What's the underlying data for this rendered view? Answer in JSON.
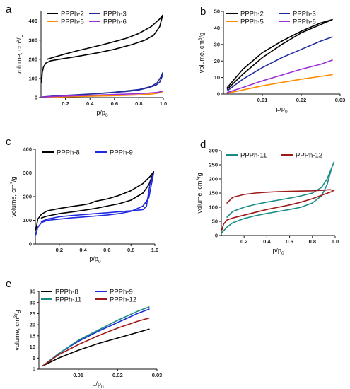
{
  "chart_data": [
    {
      "id": "a",
      "type": "line",
      "panel_label": "a",
      "xlabel_base": "p/p",
      "xlabel_sub": "0",
      "ylabel_base": "volume, cm",
      "ylabel_sup": "3",
      "ylabel_end": "/g",
      "xlim": [
        0,
        1.0
      ],
      "ylim": [
        0,
        450
      ],
      "xticks": [
        0.2,
        0.4,
        0.6,
        0.8,
        1.0
      ],
      "xtick_labels": [
        "0.2",
        "0.4",
        "0.6",
        "0.8",
        "1.0"
      ],
      "yticks": [
        0,
        100,
        200,
        300,
        400
      ],
      "ytick_labels": [
        "0",
        "100",
        "200",
        "300",
        "400"
      ],
      "legend_placement": "top-left",
      "series": [
        {
          "name": "PPPh-2",
          "color": "#000000",
          "x": [
            0.005,
            0.01,
            0.02,
            0.04,
            0.08,
            0.15,
            0.3,
            0.45,
            0.6,
            0.75,
            0.85,
            0.92,
            0.97,
            0.995,
            0.97,
            0.9,
            0.8,
            0.7,
            0.6,
            0.5,
            0.4,
            0.3,
            0.2,
            0.1,
            0.05
          ],
          "y": [
            80,
            130,
            160,
            180,
            192,
            200,
            215,
            232,
            252,
            278,
            300,
            325,
            370,
            430,
            410,
            370,
            335,
            310,
            292,
            275,
            260,
            245,
            228,
            210,
            200
          ]
        },
        {
          "name": "PPPh-3",
          "color": "#1f2e9c",
          "x": [
            0.005,
            0.1,
            0.3,
            0.5,
            0.7,
            0.8,
            0.88,
            0.94,
            0.97,
            0.99,
            0.995,
            0.98,
            0.95,
            0.9,
            0.8,
            0.6,
            0.4,
            0.2
          ],
          "y": [
            3,
            8,
            15,
            22,
            32,
            40,
            52,
            65,
            80,
            110,
            130,
            108,
            78,
            58,
            42,
            28,
            18,
            10
          ]
        },
        {
          "name": "PPPh-5",
          "color": "#ff8c00",
          "x": [
            0.005,
            0.2,
            0.4,
            0.6,
            0.8,
            0.9,
            0.95,
            0.99
          ],
          "y": [
            1,
            4,
            7,
            10,
            14,
            18,
            22,
            30
          ]
        },
        {
          "name": "PPPh-6",
          "color": "#9b2fd4",
          "x": [
            0.005,
            0.1,
            0.3,
            0.5,
            0.7,
            0.85,
            0.95,
            0.99
          ],
          "y": [
            2,
            6,
            10,
            14,
            18,
            22,
            27,
            33
          ]
        }
      ]
    },
    {
      "id": "b",
      "type": "line",
      "panel_label": "b",
      "xlabel_base": "p/p",
      "xlabel_sub": "0",
      "ylabel_base": "volume, cm",
      "ylabel_sup": "3",
      "ylabel_end": "/g",
      "xlim": [
        0,
        0.03
      ],
      "ylim": [
        0,
        50
      ],
      "xticks": [
        0.01,
        0.02,
        0.03
      ],
      "xtick_labels": [
        "0.01",
        "0.02",
        "0.03"
      ],
      "yticks": [
        0,
        10,
        20,
        30,
        40,
        50
      ],
      "ytick_labels": [
        "0",
        "10",
        "20",
        "30",
        "40",
        "50"
      ],
      "legend_placement": "top",
      "series": [
        {
          "name": "PPPh-2",
          "color": "#000000",
          "x": [
            0.001,
            0.005,
            0.01,
            0.015,
            0.02,
            0.025,
            0.028,
            0.025,
            0.02,
            0.015,
            0.01,
            0.005,
            0.001
          ],
          "y": [
            3,
            12,
            22,
            30,
            37,
            42,
            45,
            43,
            38,
            32,
            25,
            15,
            4
          ]
        },
        {
          "name": "PPPh-3",
          "color": "#1f2e9c",
          "x": [
            0.001,
            0.005,
            0.01,
            0.015,
            0.02,
            0.025,
            0.028
          ],
          "y": [
            2,
            9,
            16,
            22,
            27,
            32,
            34.5
          ]
        },
        {
          "name": "PPPh-5",
          "color": "#ff8c00",
          "x": [
            0.001,
            0.005,
            0.01,
            0.015,
            0.02,
            0.025,
            0.028
          ],
          "y": [
            0.5,
            2.5,
            5,
            7,
            9,
            10.7,
            11.7
          ]
        },
        {
          "name": "PPPh-6",
          "color": "#9b2fd4",
          "x": [
            0.001,
            0.005,
            0.01,
            0.015,
            0.02,
            0.025,
            0.028
          ],
          "y": [
            1,
            4,
            8,
            11.5,
            15,
            18,
            20.5
          ]
        }
      ]
    },
    {
      "id": "c",
      "type": "line",
      "panel_label": "c",
      "xlabel_base": "p/p",
      "xlabel_sub": "0",
      "ylabel_base": "volume, cm",
      "ylabel_sup": "3",
      "ylabel_end": "/g",
      "xlim": [
        0,
        1.0
      ],
      "ylim": [
        0,
        400
      ],
      "xticks": [
        0.2,
        0.4,
        0.6,
        0.8,
        1.0
      ],
      "xtick_labels": [
        "0.2",
        "0.4",
        "0.6",
        "0.8",
        "1.0"
      ],
      "yticks": [
        0,
        100,
        200,
        300,
        400
      ],
      "ytick_labels": [
        "0",
        "100",
        "200",
        "300",
        "400"
      ],
      "legend_placement": "top",
      "series": [
        {
          "name": "PPPh-8",
          "color": "#000000",
          "x": [
            0.005,
            0.02,
            0.05,
            0.1,
            0.2,
            0.3,
            0.4,
            0.45,
            0.5,
            0.6,
            0.7,
            0.8,
            0.9,
            0.96,
            0.99,
            0.95,
            0.9,
            0.8,
            0.7,
            0.6,
            0.5,
            0.4,
            0.3,
            0.2,
            0.1,
            0.05
          ],
          "y": [
            60,
            105,
            125,
            140,
            150,
            158,
            165,
            170,
            180,
            190,
            205,
            225,
            255,
            285,
            305,
            250,
            215,
            185,
            170,
            160,
            150,
            142,
            135,
            128,
            118,
            110
          ]
        },
        {
          "name": "PPPh-9",
          "color": "#1f2adf",
          "x": [
            0.005,
            0.02,
            0.05,
            0.1,
            0.2,
            0.3,
            0.4,
            0.5,
            0.6,
            0.7,
            0.8,
            0.9,
            0.95,
            0.99,
            0.96,
            0.93,
            0.9,
            0.8,
            0.7,
            0.6,
            0.5,
            0.4,
            0.3,
            0.2,
            0.1,
            0.05
          ],
          "y": [
            40,
            70,
            90,
            100,
            105,
            110,
            114,
            118,
            122,
            128,
            138,
            160,
            195,
            300,
            255,
            160,
            145,
            140,
            136,
            132,
            128,
            124,
            120,
            115,
            105,
            95
          ]
        }
      ]
    },
    {
      "id": "d",
      "type": "line",
      "panel_label": "d",
      "xlabel_base": "p/p",
      "xlabel_sub": "0",
      "ylabel_base": "volume, cm",
      "ylabel_sup": "3",
      "ylabel_end": "/g",
      "xlim": [
        0,
        1.0
      ],
      "ylim": [
        0,
        300
      ],
      "xticks": [
        0.2,
        0.4,
        0.6,
        0.8,
        1.0
      ],
      "xtick_labels": [
        "0.2",
        "0.4",
        "0.6",
        "0.8",
        "1.0"
      ],
      "yticks": [
        0,
        50,
        100,
        150,
        200,
        250,
        300
      ],
      "ytick_labels": [
        "0",
        "50",
        "100",
        "150",
        "200",
        "250",
        "300"
      ],
      "legend_placement": "top",
      "series": [
        {
          "name": "PPPh-11",
          "color": "#1a8c84",
          "x": [
            0.005,
            0.05,
            0.1,
            0.2,
            0.3,
            0.4,
            0.5,
            0.6,
            0.7,
            0.8,
            0.88,
            0.93,
            0.97,
            0.99,
            0.97,
            0.93,
            0.88,
            0.8,
            0.7,
            0.6,
            0.5,
            0.4,
            0.3,
            0.2,
            0.1,
            0.05
          ],
          "y": [
            10,
            30,
            45,
            60,
            70,
            78,
            85,
            92,
            100,
            115,
            140,
            180,
            240,
            260,
            240,
            200,
            170,
            150,
            140,
            132,
            125,
            118,
            110,
            100,
            85,
            65
          ]
        },
        {
          "name": "PPPh-12",
          "color": "#9e1a1a",
          "x": [
            0.005,
            0.02,
            0.05,
            0.1,
            0.2,
            0.3,
            0.4,
            0.5,
            0.6,
            0.7,
            0.8,
            0.9,
            0.97,
            0.99,
            0.95,
            0.9,
            0.8,
            0.7,
            0.6,
            0.5,
            0.4,
            0.3,
            0.2,
            0.1,
            0.05
          ],
          "y": [
            20,
            40,
            55,
            62,
            72,
            82,
            92,
            100,
            108,
            118,
            130,
            145,
            155,
            160,
            162,
            160,
            158,
            157,
            156,
            155,
            153,
            150,
            145,
            135,
            115
          ]
        }
      ]
    },
    {
      "id": "e",
      "type": "line",
      "panel_label": "e",
      "xlabel_base": "p/p",
      "xlabel_sub": "0",
      "ylabel_base": "volume, cm",
      "ylabel_sup": "3",
      "ylabel_end": "/g",
      "xlim": [
        0,
        0.03
      ],
      "ylim": [
        0,
        35
      ],
      "xticks": [
        0.01,
        0.02,
        0.03
      ],
      "xtick_labels": [
        "0.01",
        "0.02",
        "0.03"
      ],
      "yticks": [
        0,
        5,
        10,
        15,
        20,
        25,
        30,
        35
      ],
      "ytick_labels": [
        "0",
        "5",
        "10",
        "15",
        "20",
        "25",
        "30",
        "35"
      ],
      "legend_placement": "top",
      "series": [
        {
          "name": "PPPh-8",
          "color": "#000000",
          "x": [
            0.001,
            0.005,
            0.01,
            0.015,
            0.02,
            0.025,
            0.028
          ],
          "y": [
            1.5,
            5,
            8.5,
            11.5,
            14,
            16.5,
            18
          ]
        },
        {
          "name": "PPPh-9",
          "color": "#1f2adf",
          "x": [
            0.001,
            0.005,
            0.01,
            0.015,
            0.02,
            0.025,
            0.028
          ],
          "y": [
            1.5,
            7,
            12.5,
            17,
            21,
            25,
            27
          ]
        },
        {
          "name": "PPPh-11",
          "color": "#1a8c84",
          "x": [
            0.001,
            0.005,
            0.01,
            0.015,
            0.02,
            0.025,
            0.028
          ],
          "y": [
            1.5,
            7,
            13,
            17.5,
            22,
            26,
            28
          ]
        },
        {
          "name": "PPPh-12",
          "color": "#9e1a1a",
          "x": [
            0.001,
            0.005,
            0.01,
            0.015,
            0.02,
            0.025,
            0.028
          ],
          "y": [
            1.5,
            6.5,
            11,
            15,
            18.5,
            21.5,
            23
          ]
        }
      ]
    }
  ]
}
